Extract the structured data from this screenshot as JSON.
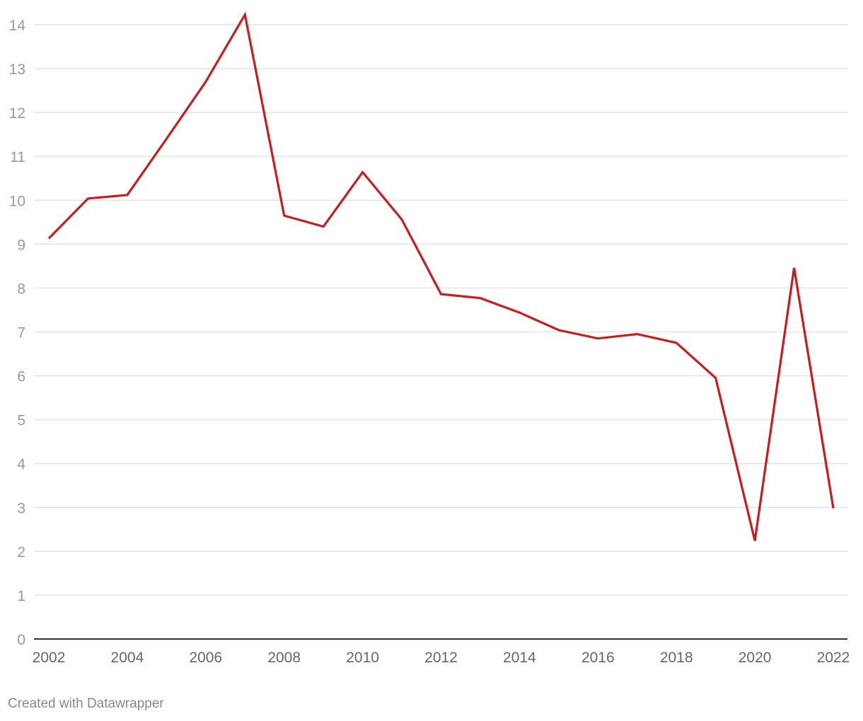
{
  "chart_data": {
    "type": "line",
    "title": "",
    "xlabel": "",
    "ylabel": "",
    "x": [
      2002,
      2003,
      2004,
      2005,
      2006,
      2007,
      2008,
      2009,
      2010,
      2011,
      2012,
      2013,
      2014,
      2015,
      2016,
      2017,
      2018,
      2019,
      2020,
      2021,
      2022
    ],
    "series": [
      {
        "values": [
          9.13,
          10.04,
          10.12,
          11.4,
          12.7,
          14.23,
          9.65,
          9.4,
          10.64,
          9.56,
          7.86,
          7.77,
          7.44,
          7.04,
          6.85,
          6.95,
          6.75,
          5.95,
          2.24,
          8.46,
          2.98
        ],
        "color": "#c71e1d"
      }
    ],
    "xlim": [
      2002,
      2022
    ],
    "ylim": [
      0,
      14
    ],
    "y_ticks": [
      "0",
      "1",
      "2",
      "3",
      "4",
      "5",
      "6",
      "7",
      "8",
      "9",
      "10",
      "11",
      "12",
      "13",
      "14"
    ],
    "x_ticks": [
      "2002",
      "2004",
      "2006",
      "2008",
      "2010",
      "2012",
      "2014",
      "2016",
      "2018",
      "2020",
      "2022"
    ],
    "grid": true,
    "legend": "none"
  },
  "footer": {
    "credit": "Created with Datawrapper"
  }
}
